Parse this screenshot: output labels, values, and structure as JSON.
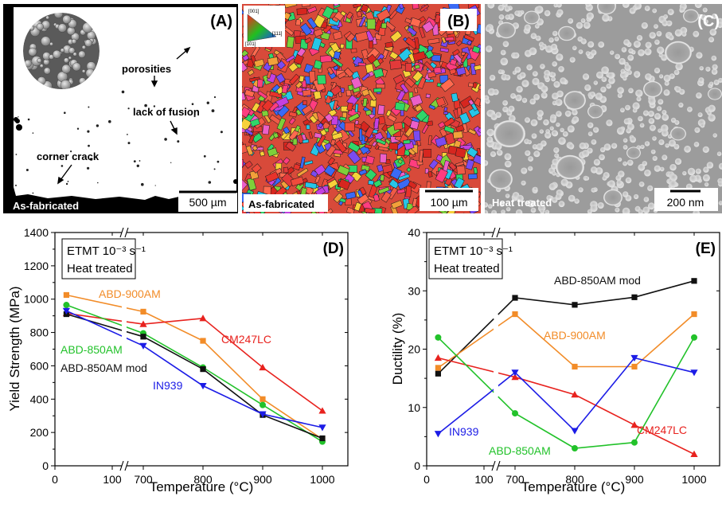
{
  "panels": {
    "A": {
      "letter": "(A)",
      "annotations": [
        "porosities",
        "lack of fusion",
        "corner crack"
      ],
      "scale_bar": "500 µm",
      "state_label": "As-fabricated"
    },
    "B": {
      "letter": "(B)",
      "ipf_labels": [
        "[001]",
        "[111]",
        "[101]"
      ],
      "scale_bar": "100 µm",
      "state_label": "As-fabricated"
    },
    "C": {
      "letter": "(C)",
      "scale_bar": "200 nm",
      "state_label": "Heat treated"
    }
  },
  "colors": {
    "ABD-900AM": "#f28c28",
    "CM247LC": "#e8221e",
    "ABD-850AM": "#22c22a",
    "ABD-850AM mod": "#111111",
    "IN939": "#1c1ce6"
  },
  "chart_data": [
    {
      "type": "line",
      "panel": "(D)",
      "xlabel": "Temperature (°C)",
      "ylabel": "Yield Strength (MPa)",
      "ylim": [
        0,
        1400
      ],
      "x_ticks": [
        "0",
        "100",
        "700",
        "800",
        "900",
        "1000"
      ],
      "y_ticks": [
        "0",
        "200",
        "400",
        "600",
        "800",
        "1000",
        "1200",
        "1400"
      ],
      "axis_break": "between 100 and 700",
      "legend_box": [
        "ETMT 10⁻³ s⁻¹",
        "Heat treated"
      ],
      "x": [
        20,
        700,
        800,
        900,
        1000
      ],
      "series": [
        {
          "name": "ABD-900AM",
          "marker": "square",
          "values": [
            1025,
            925,
            750,
            400,
            160
          ]
        },
        {
          "name": "CM247LC",
          "marker": "triangle-up",
          "values": [
            915,
            850,
            885,
            590,
            330
          ]
        },
        {
          "name": "ABD-850AM",
          "marker": "circle",
          "values": [
            965,
            795,
            590,
            365,
            145
          ]
        },
        {
          "name": "ABD-850AM mod",
          "marker": "square",
          "values": [
            910,
            775,
            580,
            305,
            165
          ]
        },
        {
          "name": "IN939",
          "marker": "triangle-down",
          "values": [
            930,
            720,
            480,
            310,
            230
          ]
        }
      ]
    },
    {
      "type": "line",
      "panel": "(E)",
      "xlabel": "Temperature (°C)",
      "ylabel": "Ductility (%)",
      "ylim": [
        0,
        40
      ],
      "x_ticks": [
        "0",
        "100",
        "700",
        "800",
        "900",
        "1000"
      ],
      "y_ticks": [
        "0",
        "10",
        "20",
        "30",
        "40"
      ],
      "axis_break": "between 100 and 700",
      "legend_box": [
        "ETMT 10⁻³ s⁻¹",
        "Heat treated"
      ],
      "x": [
        20,
        700,
        800,
        900,
        1000
      ],
      "series": [
        {
          "name": "ABD-850AM mod",
          "marker": "square",
          "values": [
            15.8,
            28.8,
            27.6,
            28.9,
            31.7
          ]
        },
        {
          "name": "ABD-900AM",
          "marker": "square",
          "values": [
            16.8,
            26.0,
            17.0,
            17.0,
            26.0
          ]
        },
        {
          "name": "CM247LC",
          "marker": "triangle-up",
          "values": [
            18.5,
            15.2,
            12.2,
            7.0,
            2.0
          ]
        },
        {
          "name": "ABD-850AM",
          "marker": "circle",
          "values": [
            22.0,
            9.0,
            3.0,
            4.0,
            22.0
          ]
        },
        {
          "name": "IN939",
          "marker": "triangle-down",
          "values": [
            5.5,
            16.0,
            6.0,
            18.5,
            16.0
          ]
        }
      ]
    }
  ]
}
